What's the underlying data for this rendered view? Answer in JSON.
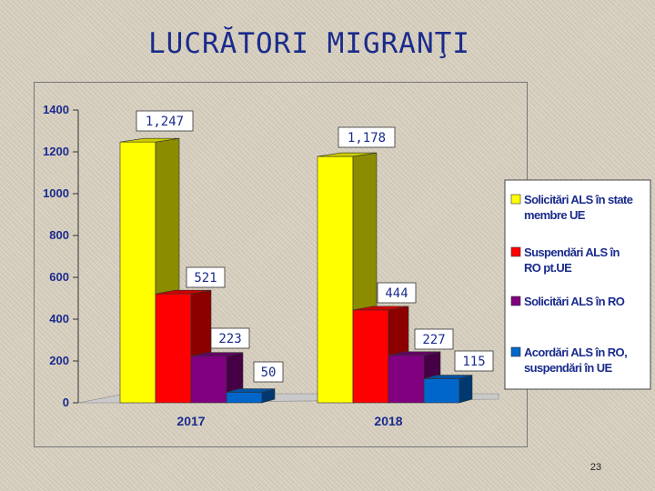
{
  "slide": {
    "title": "LUCRĂTORI MIGRANŢI",
    "page_number": "23"
  },
  "chart_data": {
    "type": "bar",
    "categories": [
      "2017",
      "2018"
    ],
    "ylim": [
      0,
      1400
    ],
    "yticks": [
      "0",
      "200",
      "400",
      "600",
      "800",
      "1000",
      "1200",
      "1400"
    ],
    "series": [
      {
        "name": "Solicitări ALS în state membre UE",
        "values": [
          1247,
          1178
        ],
        "labels": [
          "1,247",
          "1,178"
        ],
        "color": "#ffff00"
      },
      {
        "name": "Suspendări ALS în RO pt.UE",
        "values": [
          521,
          444
        ],
        "labels": [
          "521",
          "444"
        ],
        "color": "#ff0000"
      },
      {
        "name": "Solicitări ALS în RO",
        "values": [
          223,
          227
        ],
        "labels": [
          "223",
          "227"
        ],
        "color": "#800080"
      },
      {
        "name": "Acordări ALS în RO, suspendări în UE",
        "values": [
          50,
          115
        ],
        "labels": [
          "50",
          "115"
        ],
        "color": "#0066cc"
      }
    ],
    "legend_position": "right",
    "grid": false,
    "style": "3d"
  }
}
